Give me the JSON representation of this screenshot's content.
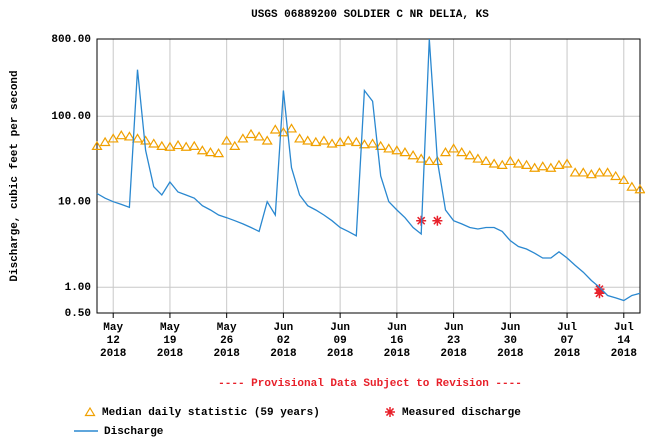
{
  "chart_data": {
    "type": "line",
    "title": "USGS 06889200 SOLDIER C NR DELIA, KS",
    "y_label": "Discharge, cubic feet per second",
    "annotation": "---- Provisional Data Subject to Revision ----",
    "log_y": true,
    "grid": true,
    "xlim": [
      "2018-05-10",
      "2018-07-16"
    ],
    "ylim": [
      0.5,
      800
    ],
    "yticks": [
      {
        "value": 0.5,
        "label": "0.50"
      },
      {
        "value": 1,
        "label": "1.00"
      },
      {
        "value": 10,
        "label": "10.00"
      },
      {
        "value": 100,
        "label": "100.00"
      },
      {
        "value": 800,
        "label": "800.00"
      }
    ],
    "xticks": [
      {
        "value": "2018-05-12",
        "label": [
          "May",
          "12",
          "2018"
        ]
      },
      {
        "value": "2018-05-19",
        "label": [
          "May",
          "19",
          "2018"
        ]
      },
      {
        "value": "2018-05-26",
        "label": [
          "May",
          "26",
          "2018"
        ]
      },
      {
        "value": "2018-06-02",
        "label": [
          "Jun",
          "02",
          "2018"
        ]
      },
      {
        "value": "2018-06-09",
        "label": [
          "Jun",
          "09",
          "2018"
        ]
      },
      {
        "value": "2018-06-16",
        "label": [
          "Jun",
          "16",
          "2018"
        ]
      },
      {
        "value": "2018-06-23",
        "label": [
          "Jun",
          "23",
          "2018"
        ]
      },
      {
        "value": "2018-06-30",
        "label": [
          "Jun",
          "30",
          "2018"
        ]
      },
      {
        "value": "2018-07-07",
        "label": [
          "Jul",
          "07",
          "2018"
        ]
      },
      {
        "value": "2018-07-14",
        "label": [
          "Jul",
          "14",
          "2018"
        ]
      }
    ],
    "x": [
      "2018-05-10",
      "2018-05-11",
      "2018-05-12",
      "2018-05-13",
      "2018-05-14",
      "2018-05-15",
      "2018-05-16",
      "2018-05-17",
      "2018-05-18",
      "2018-05-19",
      "2018-05-20",
      "2018-05-21",
      "2018-05-22",
      "2018-05-23",
      "2018-05-24",
      "2018-05-25",
      "2018-05-26",
      "2018-05-27",
      "2018-05-28",
      "2018-05-29",
      "2018-05-30",
      "2018-05-31",
      "2018-06-01",
      "2018-06-02",
      "2018-06-03",
      "2018-06-04",
      "2018-06-05",
      "2018-06-06",
      "2018-06-07",
      "2018-06-08",
      "2018-06-09",
      "2018-06-10",
      "2018-06-11",
      "2018-06-12",
      "2018-06-13",
      "2018-06-14",
      "2018-06-15",
      "2018-06-16",
      "2018-06-17",
      "2018-06-18",
      "2018-06-19",
      "2018-06-20",
      "2018-06-21",
      "2018-06-22",
      "2018-06-23",
      "2018-06-24",
      "2018-06-25",
      "2018-06-26",
      "2018-06-27",
      "2018-06-28",
      "2018-06-29",
      "2018-06-30",
      "2018-07-01",
      "2018-07-02",
      "2018-07-03",
      "2018-07-04",
      "2018-07-05",
      "2018-07-06",
      "2018-07-07",
      "2018-07-08",
      "2018-07-09",
      "2018-07-10",
      "2018-07-11",
      "2018-07-12",
      "2018-07-13",
      "2018-07-14",
      "2018-07-15",
      "2018-07-16"
    ],
    "series": [
      {
        "name": "Median daily statistic (59 years)",
        "color": "#f0a000",
        "marker": "triangle",
        "values": [
          45,
          50,
          55,
          60,
          58,
          55,
          52,
          48,
          45,
          44,
          46,
          44,
          45,
          40,
          38,
          37,
          52,
          45,
          55,
          62,
          58,
          52,
          70,
          65,
          72,
          55,
          52,
          50,
          52,
          48,
          50,
          52,
          50,
          47,
          48,
          45,
          42,
          40,
          38,
          35,
          32,
          30,
          30,
          38,
          42,
          38,
          35,
          32,
          30,
          28,
          27,
          30,
          28,
          27,
          25,
          26,
          25,
          27,
          28,
          22,
          22,
          21,
          22,
          22,
          20,
          18,
          15,
          14
        ]
      },
      {
        "name": "Measured discharge",
        "color": "#e8202a",
        "marker": "asterisk",
        "x": [
          "2018-06-19",
          "2018-06-21",
          "2018-07-11",
          "2018-07-11"
        ],
        "values": [
          6,
          6,
          0.95,
          0.85
        ]
      },
      {
        "name": "Discharge",
        "color": "#2a88d0",
        "marker": "line",
        "values": [
          12.5,
          11,
          10,
          9.3,
          8.6,
          350,
          40,
          15,
          12,
          17,
          13,
          12,
          11,
          9,
          8,
          7,
          6.5,
          6,
          5.5,
          5,
          4.5,
          10,
          7,
          200,
          25,
          12,
          9,
          8,
          7,
          6,
          5,
          4.5,
          4,
          200,
          150,
          20,
          10,
          8,
          6.5,
          5,
          4.2,
          800,
          30,
          8,
          6,
          5.5,
          5,
          4.8,
          5,
          5,
          4.5,
          3.5,
          3,
          2.8,
          2.5,
          2.2,
          2.2,
          2.6,
          2.2,
          1.8,
          1.5,
          1.2,
          1,
          0.8,
          0.75,
          0.7,
          0.8,
          0.85
        ]
      }
    ]
  }
}
